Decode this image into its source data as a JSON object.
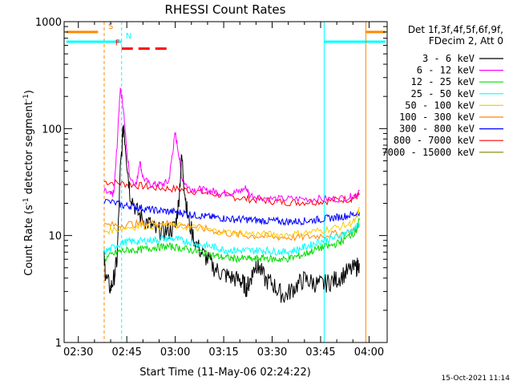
{
  "chart_data": {
    "type": "line",
    "title": "RHESSI Count Rates",
    "xlabel": "Start Time (11-May-06 02:24:22)",
    "ylabel_main": "Count Rate (s",
    "ylabel_sup1": "-1",
    "ylabel_mid": " detector segment",
    "ylabel_sup2": "-1",
    "ylabel_end": ")",
    "timestamp": "15-Oct-2021 11:14",
    "x_range_min": [
      145.6,
      245.6
    ],
    "y_range": [
      1,
      1000
    ],
    "y_scale": "log",
    "x_ticks": [
      {
        "min": 150,
        "label": "02:30"
      },
      {
        "min": 165,
        "label": "02:45"
      },
      {
        "min": 180,
        "label": "03:00"
      },
      {
        "min": 195,
        "label": "03:15"
      },
      {
        "min": 210,
        "label": "03:30"
      },
      {
        "min": 225,
        "label": "03:45"
      },
      {
        "min": 240,
        "label": "04:00"
      }
    ],
    "y_ticks": [
      {
        "value": 1,
        "label": "1"
      },
      {
        "value": 10,
        "label": "10"
      },
      {
        "value": 100,
        "label": "100"
      },
      {
        "value": 1000,
        "label": "1000"
      }
    ],
    "legend_header": [
      "Det 1f,3f,4f,5f,6f,9f,",
      "FDecim 2, Att 0"
    ],
    "series": [
      {
        "name": "3 - 6 keV",
        "color": "#000000",
        "points": [
          [
            158,
            6
          ],
          [
            158.5,
            4
          ],
          [
            160,
            3.2
          ],
          [
            161,
            4
          ],
          [
            162,
            6
          ],
          [
            163,
            40
          ],
          [
            164,
            110
          ],
          [
            165,
            50
          ],
          [
            166,
            25
          ],
          [
            168,
            17
          ],
          [
            170,
            14
          ],
          [
            172,
            13
          ],
          [
            174,
            11
          ],
          [
            176,
            11
          ],
          [
            178,
            11
          ],
          [
            180,
            12
          ],
          [
            181,
            20
          ],
          [
            182,
            55
          ],
          [
            183,
            25
          ],
          [
            184,
            14
          ],
          [
            186,
            9
          ],
          [
            188,
            7
          ],
          [
            190,
            6
          ],
          [
            192,
            5
          ],
          [
            194,
            4.5
          ],
          [
            196,
            4.2
          ],
          [
            198,
            4
          ],
          [
            200,
            3.8
          ],
          [
            201,
            3.6
          ],
          [
            202,
            3.2
          ],
          [
            203,
            3.7
          ],
          [
            204,
            4.5
          ],
          [
            205,
            5.5
          ],
          [
            206,
            5
          ],
          [
            208,
            3.8
          ],
          [
            210,
            3.6
          ],
          [
            212,
            3
          ],
          [
            214,
            2.7
          ],
          [
            216,
            3.1
          ],
          [
            218,
            3.5
          ],
          [
            220,
            3.9
          ],
          [
            222,
            3.7
          ],
          [
            224,
            3.5
          ],
          [
            226,
            3.5
          ],
          [
            228,
            3.7
          ],
          [
            230,
            3.9
          ],
          [
            232,
            4.3
          ],
          [
            234,
            4.7
          ],
          [
            236,
            5
          ],
          [
            237,
            5.5
          ]
        ]
      },
      {
        "name": "6 - 12 keV",
        "color": "#ff00ff",
        "points": [
          [
            158,
            26
          ],
          [
            160,
            24
          ],
          [
            161,
            25
          ],
          [
            162,
            70
          ],
          [
            163,
            250
          ],
          [
            164,
            150
          ],
          [
            165,
            60
          ],
          [
            166,
            35
          ],
          [
            168,
            30
          ],
          [
            169,
            50
          ],
          [
            170,
            35
          ],
          [
            172,
            30
          ],
          [
            174,
            30
          ],
          [
            176,
            30
          ],
          [
            178,
            32
          ],
          [
            179,
            55
          ],
          [
            180,
            90
          ],
          [
            181,
            60
          ],
          [
            182,
            35
          ],
          [
            184,
            28
          ],
          [
            186,
            27
          ],
          [
            188,
            27
          ],
          [
            190,
            26
          ],
          [
            192,
            26
          ],
          [
            194,
            25
          ],
          [
            196,
            25
          ],
          [
            198,
            25
          ],
          [
            200,
            26
          ],
          [
            202,
            28
          ],
          [
            203,
            24
          ],
          [
            206,
            23
          ],
          [
            210,
            22
          ],
          [
            214,
            22
          ],
          [
            218,
            22
          ],
          [
            222,
            22
          ],
          [
            226,
            22
          ],
          [
            230,
            22
          ],
          [
            234,
            23
          ],
          [
            236,
            24
          ],
          [
            237,
            26
          ]
        ]
      },
      {
        "name": "12 - 25 keV",
        "color": "#00dd00",
        "points": [
          [
            158,
            6
          ],
          [
            160,
            6.5
          ],
          [
            162,
            7
          ],
          [
            164,
            7.2
          ],
          [
            166,
            7.3
          ],
          [
            168,
            7.3
          ],
          [
            170,
            7.4
          ],
          [
            172,
            7.6
          ],
          [
            174,
            7.8
          ],
          [
            176,
            7.8
          ],
          [
            178,
            7.9
          ],
          [
            180,
            7.8
          ],
          [
            182,
            7.6
          ],
          [
            184,
            7.4
          ],
          [
            186,
            7.2
          ],
          [
            188,
            7
          ],
          [
            190,
            6.7
          ],
          [
            192,
            6.5
          ],
          [
            194,
            6.3
          ],
          [
            196,
            6.2
          ],
          [
            198,
            6.1
          ],
          [
            200,
            6.1
          ],
          [
            202,
            6.1
          ],
          [
            204,
            6
          ],
          [
            206,
            6.1
          ],
          [
            208,
            6.2
          ],
          [
            210,
            6
          ],
          [
            212,
            6
          ],
          [
            214,
            6
          ],
          [
            216,
            6.2
          ],
          [
            218,
            6.4
          ],
          [
            220,
            6.7
          ],
          [
            222,
            7.1
          ],
          [
            224,
            7.5
          ],
          [
            226,
            7.8
          ],
          [
            228,
            8
          ],
          [
            230,
            8.4
          ],
          [
            232,
            9
          ],
          [
            234,
            10
          ],
          [
            236,
            11
          ],
          [
            237,
            14
          ]
        ]
      },
      {
        "name": "25 - 50 keV",
        "color": "#00ffff",
        "points": [
          [
            158,
            7
          ],
          [
            160,
            7.5
          ],
          [
            162,
            8.2
          ],
          [
            164,
            8.6
          ],
          [
            166,
            8.8
          ],
          [
            168,
            8.8
          ],
          [
            170,
            8.9
          ],
          [
            172,
            9
          ],
          [
            174,
            9.1
          ],
          [
            176,
            9.3
          ],
          [
            178,
            9.4
          ],
          [
            180,
            9.3
          ],
          [
            182,
            9
          ],
          [
            184,
            8.8
          ],
          [
            186,
            8.5
          ],
          [
            188,
            8.2
          ],
          [
            190,
            8
          ],
          [
            192,
            7.8
          ],
          [
            194,
            7.5
          ],
          [
            196,
            7.3
          ],
          [
            198,
            7.3
          ],
          [
            200,
            7.2
          ],
          [
            202,
            7.3
          ],
          [
            204,
            7.2
          ],
          [
            206,
            7.3
          ],
          [
            208,
            7.3
          ],
          [
            210,
            7.1
          ],
          [
            212,
            7.1
          ],
          [
            214,
            7
          ],
          [
            216,
            7.2
          ],
          [
            218,
            7.4
          ],
          [
            220,
            7.8
          ],
          [
            222,
            8.2
          ],
          [
            224,
            8.7
          ],
          [
            226,
            9
          ],
          [
            228,
            9.3
          ],
          [
            230,
            9.7
          ],
          [
            232,
            10.3
          ],
          [
            234,
            11
          ],
          [
            236,
            11.8
          ],
          [
            237,
            13
          ]
        ]
      },
      {
        "name": "50 - 100 keV",
        "color": "#ffcc00",
        "points": [
          [
            158,
            11
          ],
          [
            162,
            11.5
          ],
          [
            166,
            12
          ],
          [
            170,
            12.3
          ],
          [
            174,
            12.4
          ],
          [
            178,
            12.4
          ],
          [
            182,
            12.2
          ],
          [
            186,
            11.8
          ],
          [
            190,
            11.3
          ],
          [
            194,
            10.9
          ],
          [
            198,
            10.6
          ],
          [
            202,
            10.5
          ],
          [
            206,
            10.3
          ],
          [
            210,
            10.2
          ],
          [
            214,
            10.2
          ],
          [
            218,
            10.4
          ],
          [
            222,
            10.8
          ],
          [
            226,
            11.3
          ],
          [
            230,
            11.9
          ],
          [
            234,
            12.8
          ],
          [
            236,
            14
          ],
          [
            237,
            18
          ]
        ]
      },
      {
        "name": "100 - 300 keV",
        "color": "#ff8800",
        "points": [
          [
            158,
            12.5
          ],
          [
            162,
            12.5
          ],
          [
            166,
            12.8
          ],
          [
            170,
            12.9
          ],
          [
            174,
            13
          ],
          [
            178,
            12.9
          ],
          [
            182,
            12.5
          ],
          [
            186,
            12
          ],
          [
            190,
            11.4
          ],
          [
            194,
            10.8
          ],
          [
            198,
            10.3
          ],
          [
            202,
            10
          ],
          [
            206,
            9.9
          ],
          [
            210,
            9.7
          ],
          [
            214,
            9.6
          ],
          [
            218,
            9.6
          ],
          [
            222,
            9.8
          ],
          [
            226,
            10.1
          ],
          [
            230,
            10.4
          ],
          [
            234,
            10.8
          ],
          [
            236,
            11.5
          ],
          [
            237,
            12
          ]
        ]
      },
      {
        "name": "300 - 800 keV",
        "color": "#0000ff",
        "points": [
          [
            158,
            21
          ],
          [
            162,
            20
          ],
          [
            164,
            19
          ],
          [
            166,
            19
          ],
          [
            168,
            18.5
          ],
          [
            170,
            18
          ],
          [
            172,
            17.5
          ],
          [
            174,
            17.2
          ],
          [
            176,
            17
          ],
          [
            178,
            16.8
          ],
          [
            180,
            16.7
          ],
          [
            182,
            16.3
          ],
          [
            184,
            16
          ],
          [
            186,
            15.5
          ],
          [
            188,
            15.3
          ],
          [
            190,
            15
          ],
          [
            192,
            14.8
          ],
          [
            194,
            14.6
          ],
          [
            196,
            14.4
          ],
          [
            198,
            14.2
          ],
          [
            200,
            14.2
          ],
          [
            202,
            14.1
          ],
          [
            204,
            14
          ],
          [
            206,
            13.8
          ],
          [
            208,
            13.7
          ],
          [
            210,
            13.7
          ],
          [
            212,
            13.6
          ],
          [
            214,
            13.5
          ],
          [
            216,
            13.5
          ],
          [
            218,
            13.6
          ],
          [
            220,
            13.7
          ],
          [
            222,
            13.9
          ],
          [
            224,
            14.1
          ],
          [
            226,
            14.3
          ],
          [
            228,
            14.6
          ],
          [
            230,
            14.8
          ],
          [
            232,
            15.1
          ],
          [
            234,
            15.5
          ],
          [
            236,
            15.9
          ],
          [
            237,
            16.5
          ]
        ]
      },
      {
        "name": "800 - 7000 keV",
        "color": "#ff0000",
        "points": [
          [
            158,
            32
          ],
          [
            162,
            31
          ],
          [
            166,
            30
          ],
          [
            170,
            29
          ],
          [
            174,
            28
          ],
          [
            178,
            27.5
          ],
          [
            182,
            27
          ],
          [
            186,
            26
          ],
          [
            190,
            25
          ],
          [
            194,
            24
          ],
          [
            198,
            23
          ],
          [
            202,
            22
          ],
          [
            206,
            21.5
          ],
          [
            210,
            21
          ],
          [
            214,
            20.5
          ],
          [
            218,
            20.5
          ],
          [
            222,
            20.7
          ],
          [
            226,
            21
          ],
          [
            230,
            21.5
          ],
          [
            234,
            22
          ],
          [
            236,
            23
          ],
          [
            237,
            24
          ]
        ]
      },
      {
        "name": "7000 - 15000 keV",
        "color": "#808000",
        "points": []
      }
    ],
    "attenuator_state_marks": [
      {
        "label": "S",
        "color": "#ff8800",
        "min": 158.0,
        "start_min": 146.3,
        "end_min": 156.1,
        "value": 800
      },
      {
        "label": "N",
        "color": "#00ffff",
        "min": 163.4,
        "start_min": 146.3,
        "end_min": 163.4,
        "value": 650
      },
      {
        "label": "F",
        "color": "#ff0000",
        "start_min": 163.4,
        "end_min": 177.9,
        "value": 560
      },
      {
        "label": "",
        "color": "#00ffff",
        "min": 226.1,
        "start_min": 226.1,
        "end_min": 245.0,
        "value": 650
      },
      {
        "label": "",
        "color": "#ff8800",
        "min": 239.0,
        "start_min": 239.0,
        "end_min": 245.0,
        "value": 800
      }
    ]
  }
}
